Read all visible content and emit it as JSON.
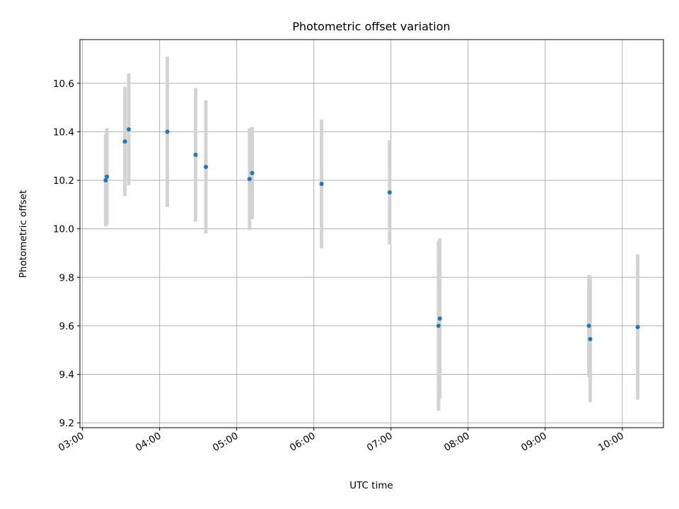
{
  "chart_data": {
    "type": "scatter",
    "title": "Photometric offset variation",
    "xlabel": "UTC time",
    "ylabel": "Photometric offset",
    "x_ticks": [
      "03:00",
      "04:00",
      "05:00",
      "06:00",
      "07:00",
      "08:00",
      "09:00",
      "10:00"
    ],
    "y_ticks": [
      "9.2",
      "9.4",
      "9.6",
      "9.8",
      "10.0",
      "10.2",
      "10.4",
      "10.6"
    ],
    "xlim": [
      "02:58",
      "10:32"
    ],
    "ylim": [
      9.18,
      10.78
    ],
    "grid": true,
    "marker_color": "#1f77b4",
    "errorbar_color": "#d3d3d3",
    "points": [
      {
        "x": "03:18",
        "y": 10.2,
        "err": 0.19
      },
      {
        "x": "03:19",
        "y": 10.215,
        "err": 0.2
      },
      {
        "x": "03:33",
        "y": 10.36,
        "err": 0.225
      },
      {
        "x": "03:36",
        "y": 10.41,
        "err": 0.23
      },
      {
        "x": "04:06",
        "y": 10.4,
        "err": 0.31
      },
      {
        "x": "04:28",
        "y": 10.305,
        "err": 0.275
      },
      {
        "x": "04:36",
        "y": 10.255,
        "err": 0.275
      },
      {
        "x": "05:10",
        "y": 10.205,
        "err": 0.21
      },
      {
        "x": "05:12",
        "y": 10.23,
        "err": 0.19
      },
      {
        "x": "06:06",
        "y": 10.185,
        "err": 0.265
      },
      {
        "x": "06:59",
        "y": 10.15,
        "err": 0.215
      },
      {
        "x": "07:37",
        "y": 9.6,
        "err": 0.35
      },
      {
        "x": "07:38",
        "y": 9.63,
        "err": 0.33
      },
      {
        "x": "09:34",
        "y": 9.6,
        "err": 0.21
      },
      {
        "x": "09:35",
        "y": 9.545,
        "err": 0.26
      },
      {
        "x": "10:12",
        "y": 9.595,
        "err": 0.3
      }
    ]
  }
}
